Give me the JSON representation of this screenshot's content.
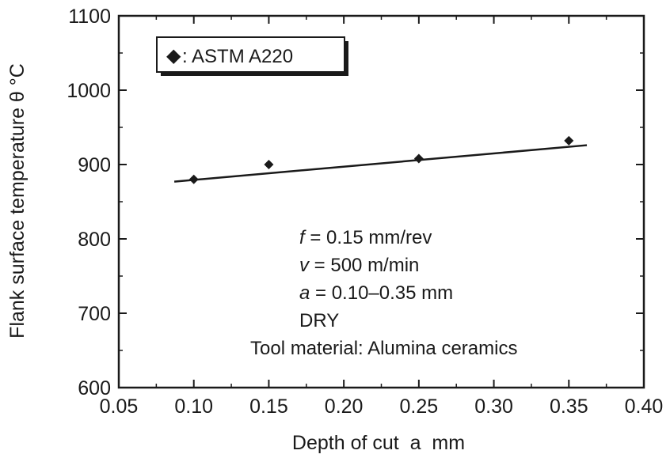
{
  "chart_data": {
    "type": "scatter",
    "xlabel": "Depth of cut  a  mm",
    "ylabel": "Flank surface temperature θ °C",
    "xlim": [
      0.05,
      0.4
    ],
    "ylim": [
      600,
      1100
    ],
    "xticks": [
      "0.05",
      "0.10",
      "0.15",
      "0.20",
      "0.25",
      "0.30",
      "0.35",
      "0.40"
    ],
    "yticks": [
      "600",
      "700",
      "800",
      "900",
      "1000",
      "1100"
    ],
    "grid": false,
    "legend": {
      "position": "top-left",
      "marker": "◆",
      "label": ": ASTM A220"
    },
    "series": [
      {
        "name": "ASTM A220",
        "marker": "diamond",
        "x": [
          0.1,
          0.15,
          0.25,
          0.35
        ],
        "y": [
          880,
          900,
          908,
          932
        ]
      }
    ],
    "fit_line": {
      "x": [
        0.087,
        0.362
      ],
      "y": [
        877,
        926
      ]
    },
    "annotations": [
      {
        "var": "f",
        "rest": " = 0.15 mm/rev"
      },
      {
        "var": "v",
        "rest": " = 500 m/min"
      },
      {
        "var": "a",
        "rest": " = 0.10–0.35 mm"
      },
      {
        "var": "",
        "rest": "DRY"
      },
      {
        "var": "",
        "rest": "Tool material: Alumina ceramics"
      }
    ]
  }
}
